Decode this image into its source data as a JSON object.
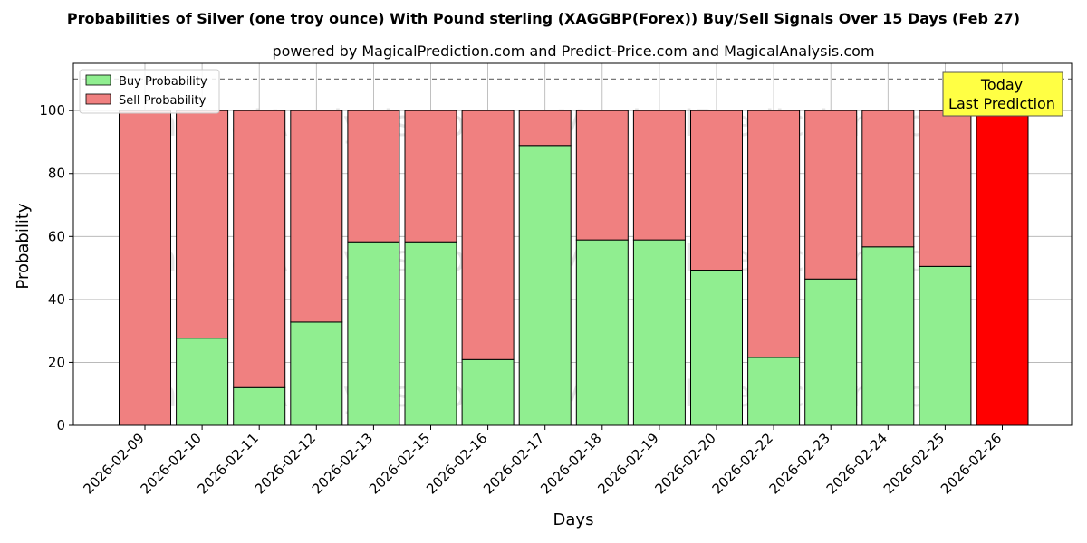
{
  "chart_data": {
    "type": "bar",
    "stacked": true,
    "title": "Probabilities of Silver (one troy ounce) With Pound sterling (XAGGBP(Forex)) Buy/Sell Signals Over 15 Days (Feb 27)",
    "subtitle": "powered by MagicalPrediction.com and Predict-Price.com and MagicalAnalysis.com",
    "xlabel": "Days",
    "ylabel": "Probability",
    "ylim": [
      0,
      115
    ],
    "yticks": [
      0,
      20,
      40,
      60,
      80,
      100
    ],
    "threshold_line": 110,
    "grid": true,
    "legend_position": "top-left",
    "categories": [
      "2026-02-09",
      "2026-02-10",
      "2026-02-11",
      "2026-02-12",
      "2026-02-13",
      "2026-02-15",
      "2026-02-16",
      "2026-02-17",
      "2026-02-18",
      "2026-02-19",
      "2026-02-20",
      "2026-02-22",
      "2026-02-23",
      "2026-02-24",
      "2026-02-25",
      "2026-02-26"
    ],
    "series": [
      {
        "name": "Buy Probability",
        "color": "#90ee90",
        "values": [
          0,
          27.7,
          12,
          32.8,
          58.3,
          58.3,
          20.9,
          88.9,
          58.9,
          58.9,
          49.3,
          21.6,
          46.5,
          56.7,
          50.5,
          0
        ]
      },
      {
        "name": "Sell Probability",
        "color": "#f08080",
        "values": [
          100,
          72.3,
          88,
          67.2,
          41.7,
          41.7,
          79.1,
          11.1,
          41.1,
          41.1,
          50.7,
          78.4,
          53.5,
          43.3,
          49.5,
          100
        ]
      }
    ],
    "highlight": {
      "index": 15,
      "color": "#ff0000"
    },
    "annotation": {
      "line1": "Today",
      "line2": "Last Prediction",
      "background": "#ffff44"
    },
    "watermarks": [
      "MagicalAnalysis.com",
      "MagicalPrediction.com"
    ]
  }
}
